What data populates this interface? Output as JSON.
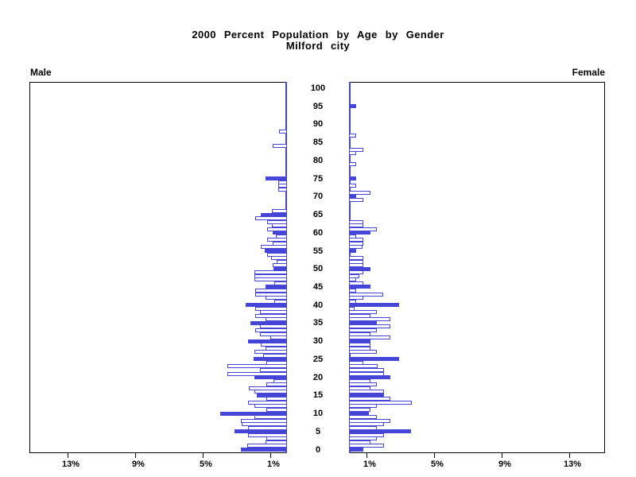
{
  "chart_data": {
    "type": "bar",
    "variant": "population-pyramid",
    "title": "2000 Percent Population by Age by Gender",
    "subtitle": "Milford city",
    "left_series_label": "Male",
    "right_series_label": "Female",
    "age_axis": {
      "min": 0,
      "max": 100,
      "tick_step": 5,
      "tick_labels": [
        "0",
        "5",
        "10",
        "15",
        "20",
        "25",
        "30",
        "35",
        "40",
        "45",
        "50",
        "55",
        "60",
        "65",
        "70",
        "75",
        "80",
        "85",
        "90",
        "95",
        "100"
      ]
    },
    "pct_axis": {
      "max": 15,
      "tick_values": [
        1,
        5,
        9,
        13
      ],
      "tick_labels": [
        "1%",
        "5%",
        "9%",
        "13%"
      ]
    },
    "legend_note": "solid fill at ages divisible by 5, hollow outline otherwise",
    "colors": {
      "bar": "#4545d7",
      "hollow_fill": "#ffffff",
      "frame": "#000000"
    },
    "series": [
      {
        "name": "Male",
        "unit": "percent of population",
        "ages": "index = single year of age 0-100",
        "values": [
          2.75,
          2.33,
          1.27,
          1.24,
          2.29,
          3.11,
          2.3,
          2.68,
          2.72,
          1.94,
          3.93,
          1.24,
          1.94,
          2.29,
          1.24,
          1.78,
          1.91,
          2.25,
          1.24,
          0.8,
          1.95,
          3.55,
          1.6,
          3.55,
          1.2,
          1.96,
          1.39,
          1.91,
          1.25,
          1.53,
          2.32,
          0.99,
          1.61,
          1.89,
          1.61,
          2.16,
          1.25,
          1.89,
          1.61,
          1.89,
          2.43,
          0.75,
          1.25,
          1.89,
          1.89,
          1.25,
          0.75,
          1.92,
          1.92,
          1.92,
          0.8,
          0.83,
          0.63,
          0.95,
          1.19,
          1.33,
          1.55,
          0.83,
          1.16,
          0.64,
          0.85,
          1.16,
          0.89,
          1.16,
          1.86,
          1.55,
          0.89,
          0,
          0,
          0,
          0,
          0,
          0.5,
          0.5,
          0.5,
          1.25,
          0,
          0,
          0,
          0,
          0,
          0,
          0,
          0,
          0.83,
          0,
          0,
          0,
          0.47,
          0,
          0,
          0,
          0,
          0,
          0,
          0,
          0,
          0,
          0,
          0,
          0
        ]
      },
      {
        "name": "Female",
        "unit": "percent of population",
        "ages": "index = single year of age 0-100",
        "values": [
          0.83,
          2.08,
          1.25,
          1.64,
          2.08,
          3.68,
          1.64,
          2.08,
          2.46,
          1.64,
          1.17,
          1.25,
          1.64,
          3.72,
          2.46,
          2.08,
          2.08,
          1.25,
          1.64,
          1.25,
          2.46,
          2.08,
          2.08,
          1.69,
          0.83,
          2.97,
          0,
          1.64,
          1.25,
          1.25,
          1.25,
          2.46,
          1.25,
          1.64,
          2.46,
          1.64,
          2.46,
          1.25,
          1.64,
          0.31,
          2.97,
          0.4,
          0.83,
          2.03,
          0.4,
          1.25,
          0.83,
          0.4,
          0.63,
          0.83,
          1.25,
          0.83,
          0.83,
          0.83,
          0,
          0.42,
          0.78,
          0.83,
          0.83,
          0.42,
          1.25,
          1.64,
          0.83,
          0.83,
          0,
          0,
          0,
          0,
          0,
          0.83,
          0.42,
          1.25,
          0,
          0.4,
          0,
          0.4,
          0,
          0,
          0,
          0.4,
          0,
          0,
          0.4,
          0.83,
          0,
          0,
          0,
          0.42,
          0,
          0,
          0,
          0,
          0,
          0,
          0,
          0.42,
          0,
          0,
          0,
          0,
          0
        ]
      }
    ]
  }
}
